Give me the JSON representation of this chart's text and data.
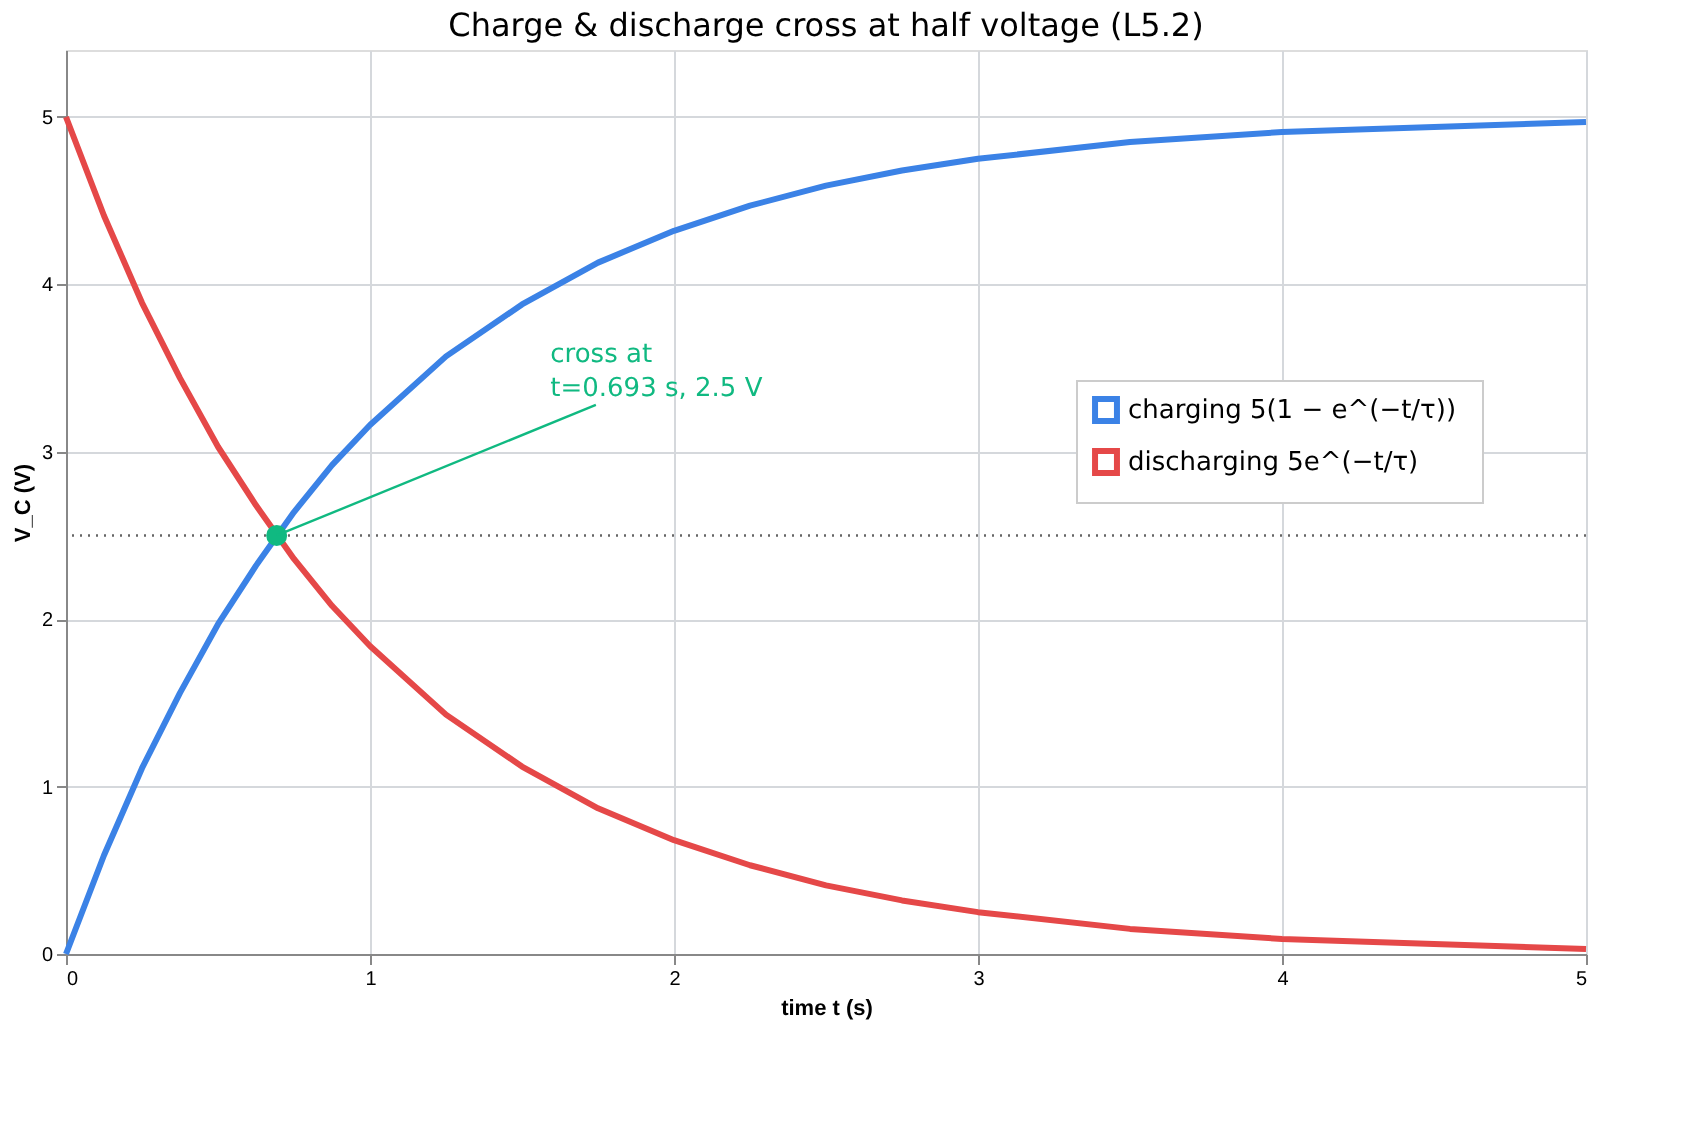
{
  "chart_data": {
    "type": "line",
    "title": "Charge & discharge cross at half voltage (L5.2)",
    "xlabel": "time  t  (s)",
    "ylabel": "V_C  (V)",
    "x": [
      0,
      0.125,
      0.25,
      0.375,
      0.5,
      0.625,
      0.75,
      0.875,
      1,
      1.25,
      1.5,
      1.75,
      2,
      2.25,
      2.5,
      2.75,
      3,
      3.5,
      4,
      4.5,
      5
    ],
    "series": [
      {
        "name": "charging  5(1 − e^(−t/τ))",
        "color": "#3b82e6",
        "values": [
          0,
          0.59,
          1.11,
          1.56,
          1.97,
          2.32,
          2.64,
          2.92,
          3.16,
          3.57,
          3.88,
          4.13,
          4.32,
          4.47,
          4.59,
          4.68,
          4.75,
          4.85,
          4.91,
          4.94,
          4.97
        ]
      },
      {
        "name": "discharging  5e^(−t/τ)",
        "color": "#e54848",
        "values": [
          5,
          4.41,
          3.89,
          3.44,
          3.03,
          2.68,
          2.36,
          2.08,
          1.84,
          1.43,
          1.12,
          0.87,
          0.68,
          0.53,
          0.41,
          0.32,
          0.25,
          0.15,
          0.09,
          0.06,
          0.03
        ]
      },
      {
        "type": "scatter",
        "color": "#10b981",
        "marker": "circle",
        "x": [
          0.693
        ],
        "values": [
          2.5
        ]
      }
    ],
    "ref_lines": [
      {
        "axis": "y",
        "value": 2.5,
        "color": "#666666",
        "line_style": "dotted"
      }
    ],
    "annotations": [
      {
        "text": "cross at\n t=0.693 s, 2.5 V",
        "x": 0.693,
        "y": 2.5
      }
    ],
    "xlim": [
      0,
      5
    ],
    "ylim": [
      0,
      5.4
    ],
    "xticks": [
      0,
      1,
      2,
      3,
      4,
      5
    ],
    "yticks": [
      0,
      1,
      2,
      3,
      4,
      5
    ],
    "grid": true,
    "legend": "right",
    "line_style": "solid"
  }
}
